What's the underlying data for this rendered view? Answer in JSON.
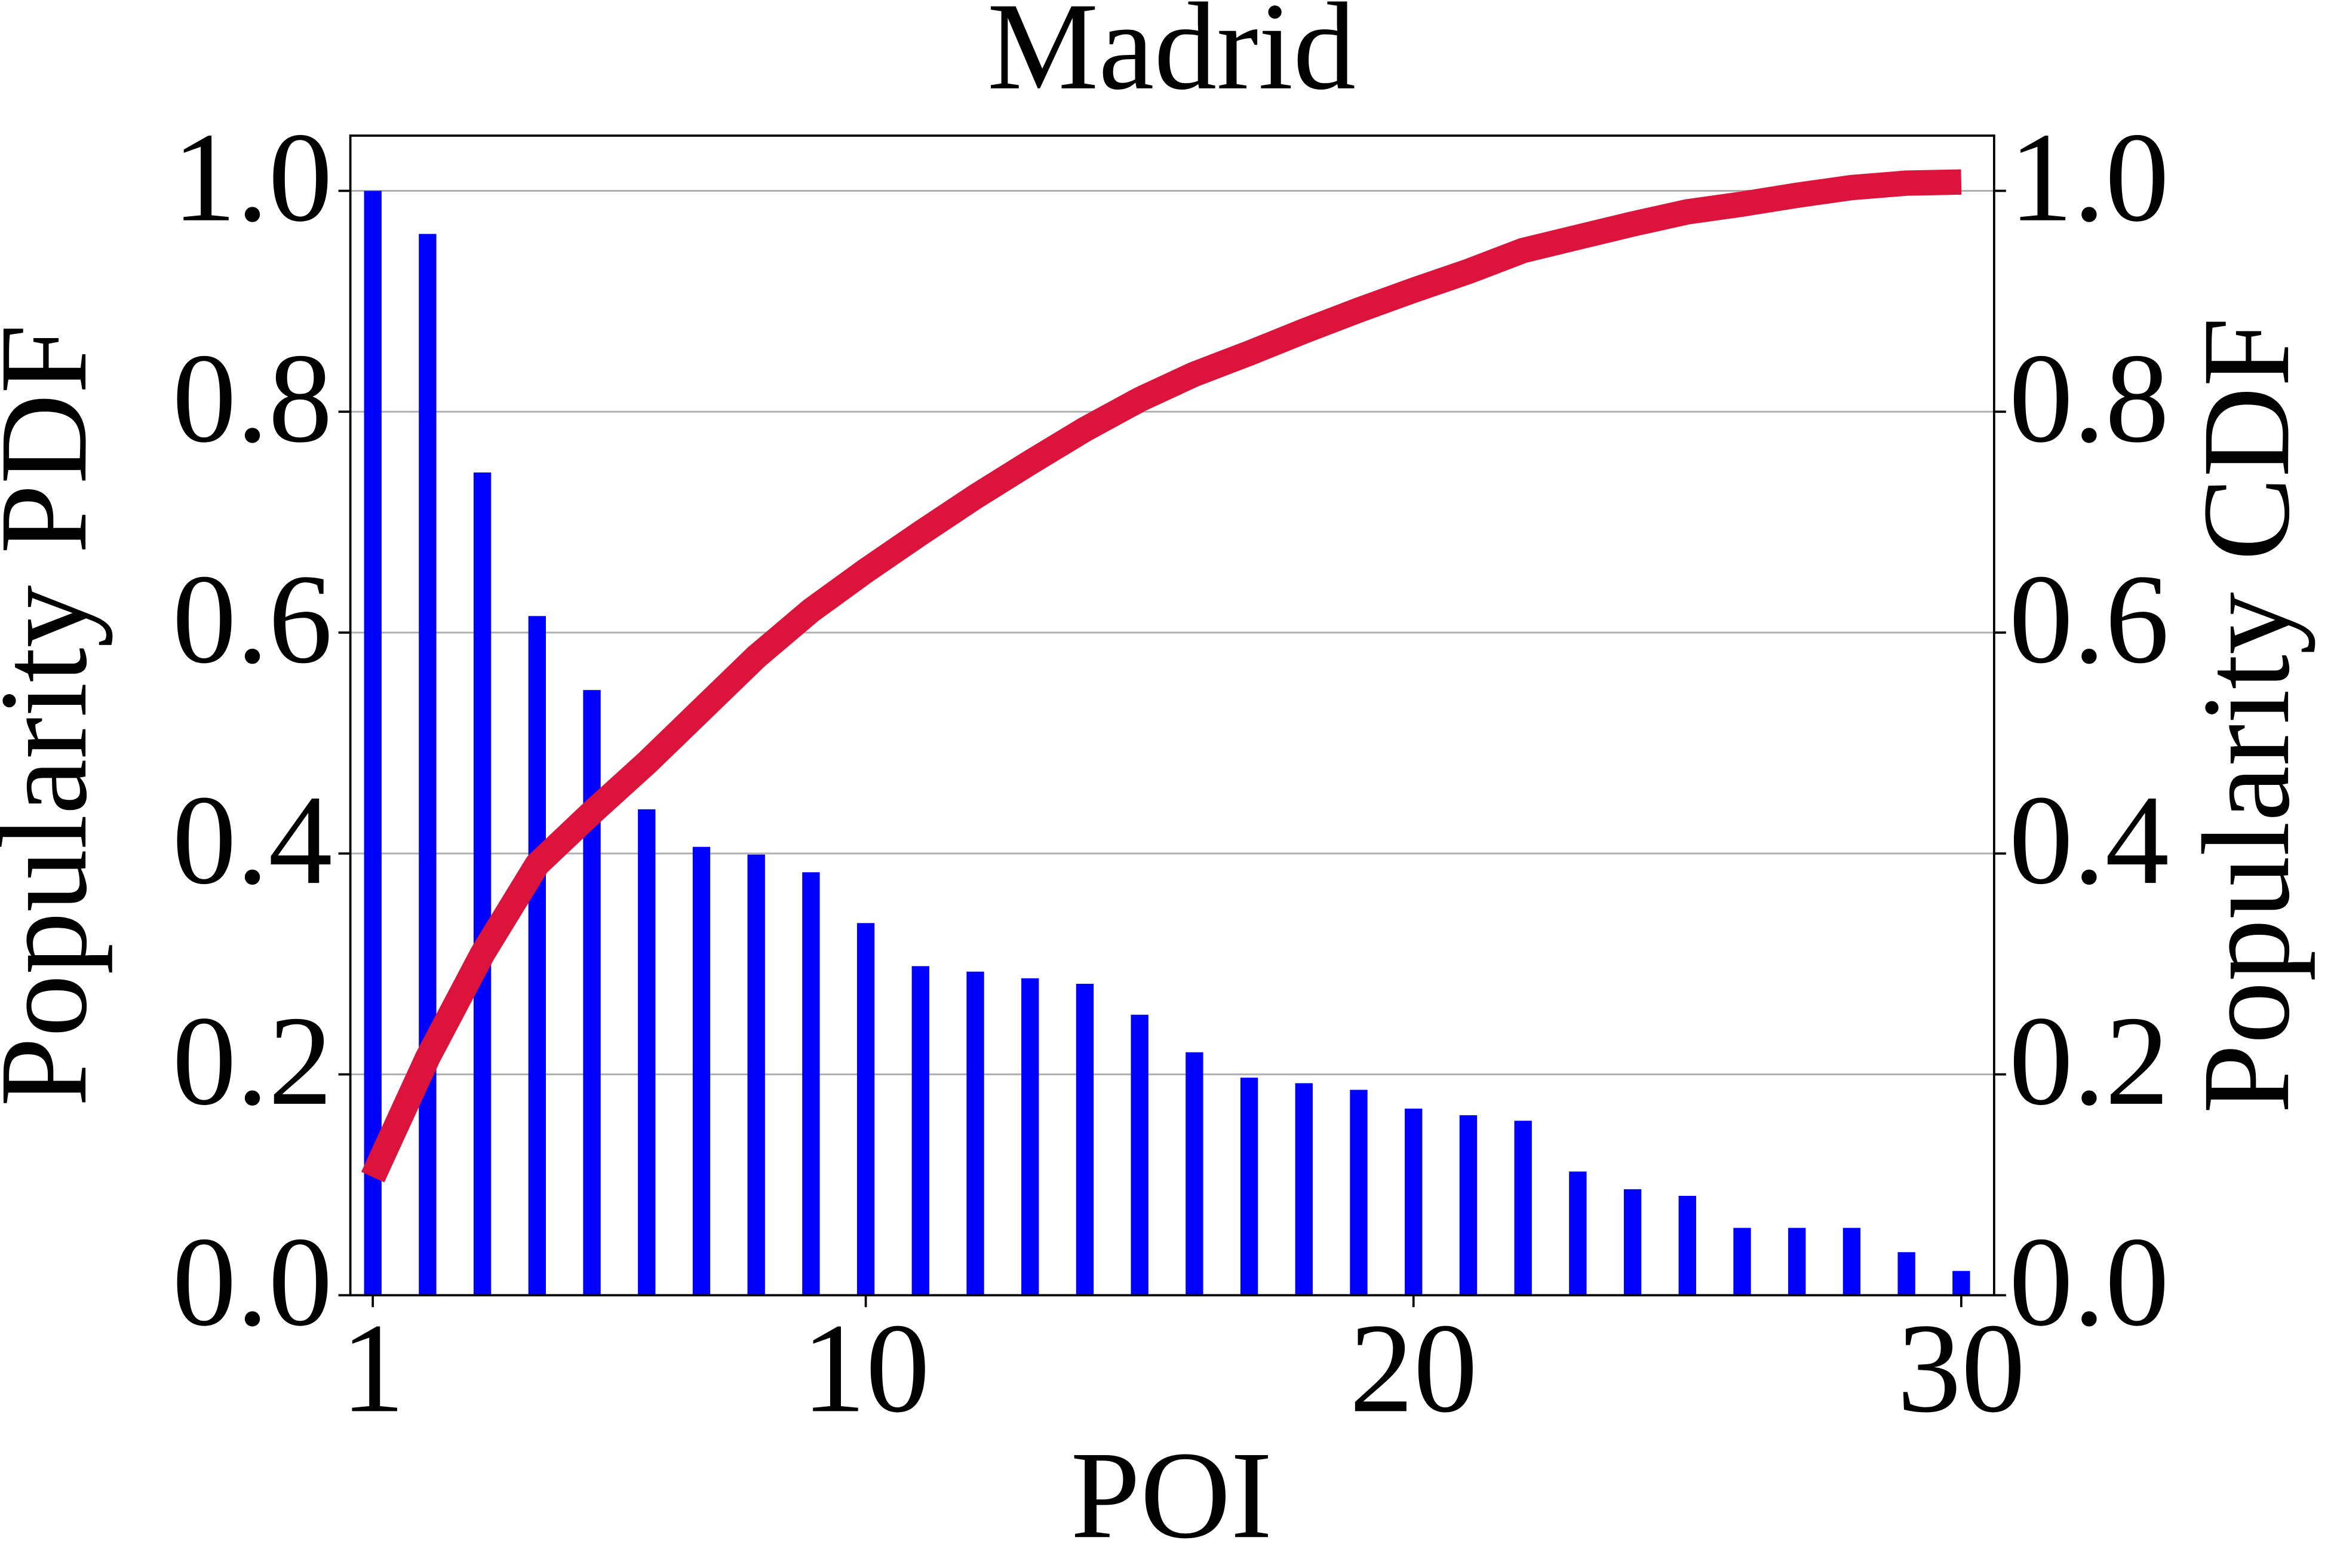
{
  "chart_data": {
    "type": "bar_line",
    "title": "Madrid",
    "xlabel": "POI",
    "ylabel": "Popularity PDF",
    "y2label": "Popularity CDF",
    "x": [
      1,
      2,
      3,
      4,
      5,
      6,
      7,
      8,
      9,
      10,
      11,
      12,
      13,
      14,
      15,
      16,
      17,
      18,
      19,
      20,
      21,
      22,
      23,
      24,
      25,
      26,
      27,
      28,
      29,
      30
    ],
    "series": [
      {
        "name": "PDF",
        "type": "bar",
        "color": "#0000ff",
        "values": [
          1.0,
          0.961,
          0.745,
          0.615,
          0.548,
          0.44,
          0.406,
          0.399,
          0.383,
          0.337,
          0.298,
          0.293,
          0.287,
          0.282,
          0.254,
          0.22,
          0.197,
          0.192,
          0.186,
          0.169,
          0.163,
          0.158,
          0.112,
          0.096,
          0.09,
          0.061,
          0.061,
          0.061,
          0.039,
          0.022
        ]
      },
      {
        "name": "CDF",
        "type": "line",
        "axis": "y2",
        "color": "#dc143c",
        "values": [
          0.107,
          0.215,
          0.309,
          0.39,
          0.437,
          0.482,
          0.53,
          0.578,
          0.62,
          0.656,
          0.69,
          0.723,
          0.754,
          0.784,
          0.811,
          0.834,
          0.853,
          0.873,
          0.892,
          0.91,
          0.927,
          0.946,
          0.958,
          0.97,
          0.981,
          0.988,
          0.996,
          1.003,
          1.007,
          1.008
        ]
      }
    ],
    "xlim": [
      0.59,
      30.6
    ],
    "xticks": [
      1,
      10,
      20,
      30
    ],
    "ylim": [
      0,
      1.05
    ],
    "yticks": [
      {
        "value": 0,
        "label": "0.0"
      },
      0.2,
      0.4,
      0.6,
      0.8,
      {
        "value": 1,
        "label": "1.0"
      }
    ],
    "y2lim": [
      0,
      1.05
    ],
    "y2ticks": [
      {
        "value": 0,
        "label": "0.0"
      },
      0.2,
      0.4,
      0.6,
      0.8,
      {
        "value": 1,
        "label": "1.0"
      }
    ],
    "grid": true
  }
}
